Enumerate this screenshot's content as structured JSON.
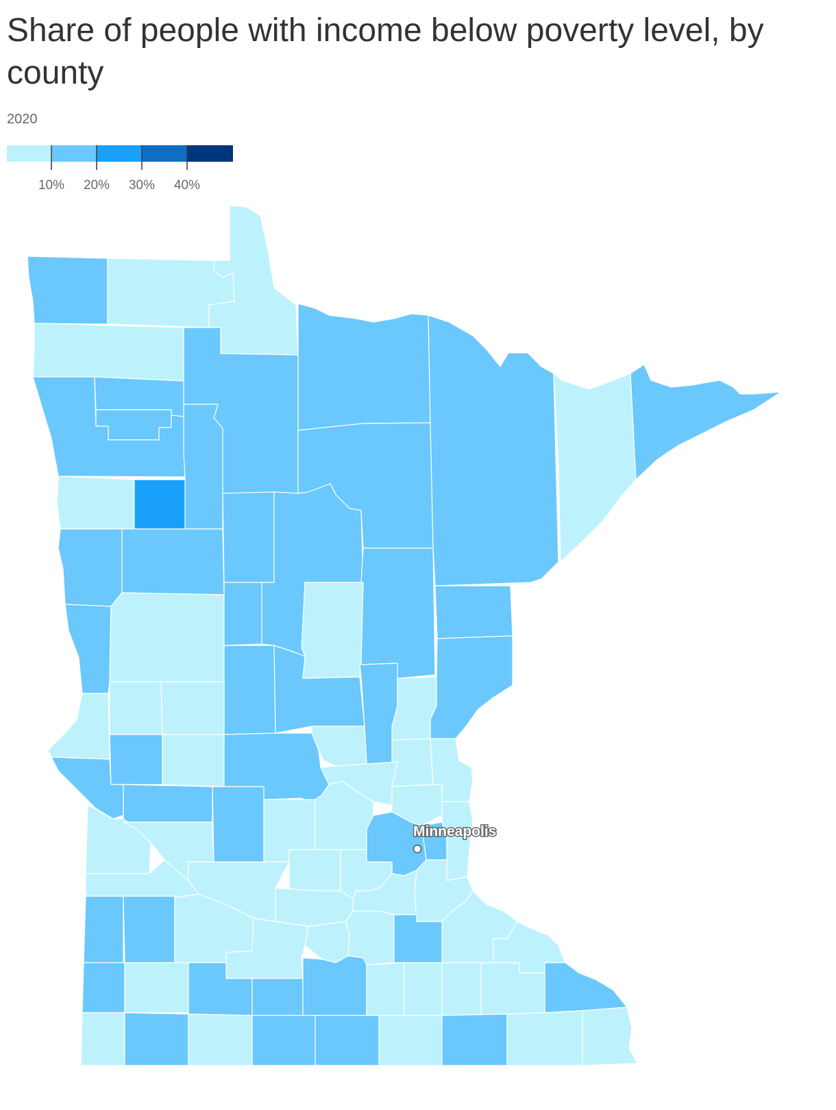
{
  "title": "Share of people with income below poverty level, by county",
  "subtitle": "2020",
  "legend": {
    "bins": [
      {
        "color": "#bdf2fd"
      },
      {
        "color": "#6ac8fd"
      },
      {
        "color": "#18a0fb"
      },
      {
        "color": "#0f6ec4"
      },
      {
        "color": "#003580"
      }
    ],
    "ticks": [
      "10%",
      "20%",
      "30%",
      "40%"
    ]
  },
  "colors": {
    "lt10": "#bdf2fd",
    "b10_20": "#6ac8fd",
    "b20_30": "#18a0fb",
    "border": "#ffffff"
  },
  "city": {
    "name": "Minneapolis"
  }
}
